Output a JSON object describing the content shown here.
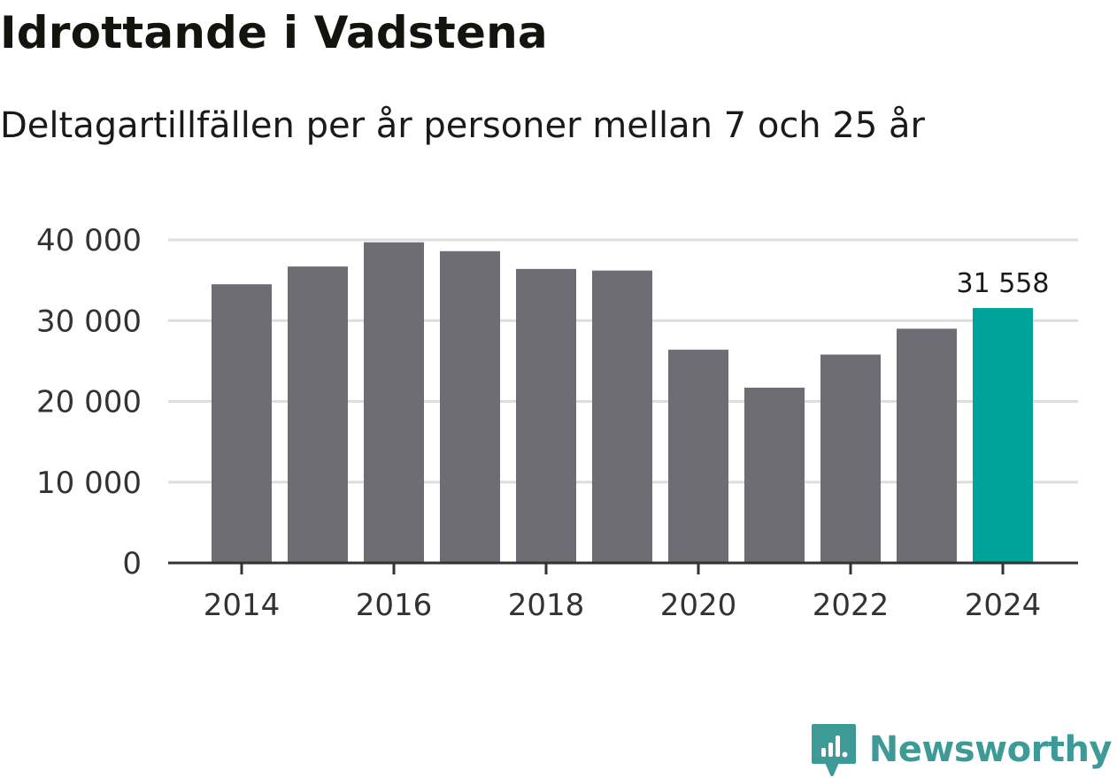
{
  "header": {
    "title": "Idrottande i Vadstena",
    "subtitle": "Deltagartillfällen per år personer mellan 7 och 25 år"
  },
  "brand": {
    "name": "Newsworthy",
    "color": "#3d9a96"
  },
  "colors": {
    "bar_default": "#6e6d73",
    "bar_highlight": "#00a39a",
    "grid": "#dddddd",
    "axis": "#333333"
  },
  "chart_data": {
    "type": "bar",
    "title": "Idrottande i Vadstena",
    "subtitle": "Deltagartillfällen per år personer mellan 7 och 25 år",
    "xlabel": "",
    "ylabel": "",
    "categories": [
      2014,
      2015,
      2016,
      2017,
      2018,
      2019,
      2020,
      2021,
      2022,
      2023,
      2024
    ],
    "values": [
      34500,
      36700,
      39700,
      38600,
      36400,
      36200,
      26400,
      21700,
      25800,
      29000,
      31558
    ],
    "highlight_index": 10,
    "highlight_label": "31 558",
    "ylim": [
      0,
      40000
    ],
    "yticks": [
      0,
      10000,
      20000,
      30000,
      40000
    ],
    "ytick_labels": [
      "0",
      "10 000",
      "20 000",
      "30 000",
      "40 000"
    ],
    "xticks": [
      2014,
      2016,
      2018,
      2020,
      2022,
      2024
    ],
    "xtick_labels": [
      "2014",
      "2016",
      "2018",
      "2020",
      "2022",
      "2024"
    ],
    "grid": true,
    "legend": "none"
  }
}
